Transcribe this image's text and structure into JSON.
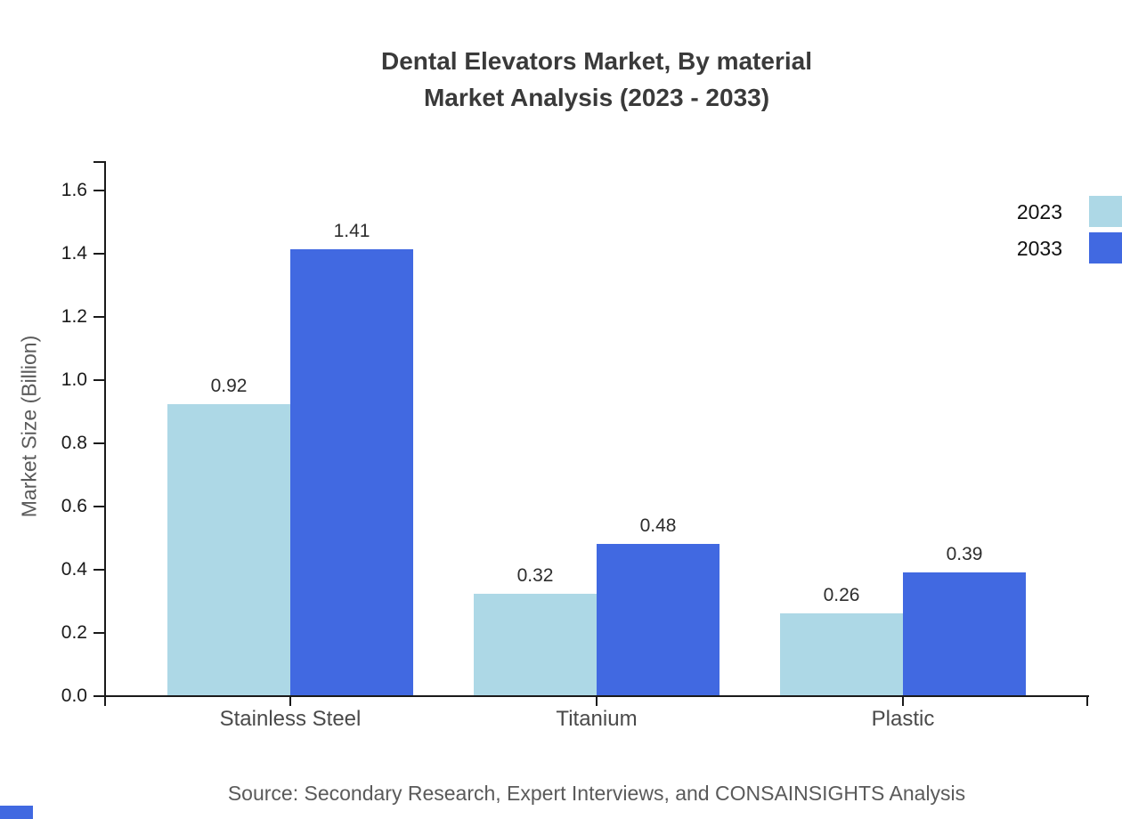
{
  "title": {
    "line1": "Dental Elevators Market, By material",
    "line2": "Market Analysis (2023 - 2033)"
  },
  "source": "Source: Secondary Research, Expert Interviews, and CONSAINSIGHTS Analysis",
  "chart_data": {
    "type": "bar",
    "categories": [
      "Stainless Steel",
      "Titanium",
      "Plastic"
    ],
    "series": [
      {
        "name": "2023",
        "color": "#add8e6",
        "values": [
          0.92,
          0.32,
          0.26
        ]
      },
      {
        "name": "2033",
        "color": "#4169e1",
        "values": [
          1.41,
          0.48,
          0.39
        ]
      }
    ],
    "value_labels": [
      "0.92",
      "1.41",
      "0.32",
      "0.48",
      "0.26",
      "0.39"
    ],
    "title": "Dental Elevators Market, By material Market Analysis (2023 - 2033)",
    "xlabel": "",
    "ylabel": "Market Size (Billion)",
    "ylim": [
      0,
      1.69
    ],
    "yticks": [
      0.0,
      0.2,
      0.4,
      0.6,
      0.8,
      1.0,
      1.2,
      1.4,
      1.6
    ],
    "ytick_labels": [
      "0.0",
      "0.2",
      "0.4",
      "0.6",
      "0.8",
      "1.0",
      "1.2",
      "1.4",
      "1.6"
    ],
    "grid": false,
    "legend_position": "top-right",
    "bar_value_labels_shown": true
  },
  "colors": {
    "axis": "#1a1a1a",
    "title_text": "#3a3a3a",
    "brand_mark": "#4169e1"
  }
}
